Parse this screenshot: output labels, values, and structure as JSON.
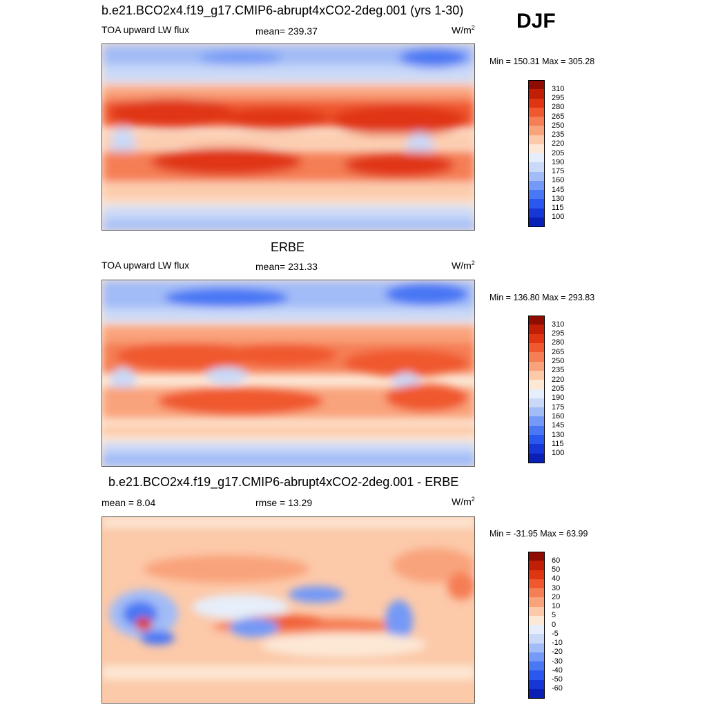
{
  "season": "DJF",
  "colors": {
    "abs_scale": [
      "#000080",
      "#0a1fb4",
      "#1637d6",
      "#2a57ee",
      "#4a77f4",
      "#7599f6",
      "#a2bcf7",
      "#cad9f8",
      "#e6eefb",
      "#fde8d6",
      "#fcc9a9",
      "#f9a37c",
      "#f57e55",
      "#f0582f",
      "#e03513",
      "#c01f05",
      "#8e0c00"
    ],
    "diff_scale": [
      "#000080",
      "#0a1fb4",
      "#1637d6",
      "#2a57ee",
      "#4a77f4",
      "#7599f6",
      "#a2bcf7",
      "#cad9f8",
      "#e6eefb",
      "#fde8d6",
      "#fcc9a9",
      "#f9a37c",
      "#f57e55",
      "#f0582f",
      "#e03513",
      "#c01f05",
      "#8e0c00"
    ]
  },
  "panels": [
    {
      "title": "b.e21.BCO2x4.f19_g17.CMIP6-abrupt4xCO2-2deg.001 (yrs 1-30)",
      "left_label": "TOA upward LW flux",
      "center_label": "mean= 239.37",
      "units": "W/m",
      "units_sup": "2",
      "minmax": "Min = 150.31 Max = 305.28",
      "colorbar_labels": [
        "310",
        "295",
        "280",
        "265",
        "250",
        "235",
        "220",
        "205",
        "190",
        "175",
        "160",
        "145",
        "130",
        "115",
        "100"
      ]
    },
    {
      "title": "ERBE",
      "left_label": "TOA upward LW flux",
      "center_label": "mean= 231.33",
      "units": "W/m",
      "units_sup": "2",
      "minmax": "Min = 136.80 Max = 293.83",
      "colorbar_labels": [
        "310",
        "295",
        "280",
        "265",
        "250",
        "235",
        "220",
        "205",
        "190",
        "175",
        "160",
        "145",
        "130",
        "115",
        "100"
      ]
    },
    {
      "title": "b.e21.BCO2x4.f19_g17.CMIP6-abrupt4xCO2-2deg.001 - ERBE",
      "left_label": "mean =   8.04",
      "center_label": "rmse =  13.29",
      "units": "W/m",
      "units_sup": "2",
      "minmax": "Min = -31.95 Max =  63.99",
      "colorbar_labels": [
        "60",
        "50",
        "40",
        "30",
        "20",
        "10",
        "5",
        "0",
        "-5",
        "-10",
        "-20",
        "-30",
        "-40",
        "-50",
        "-60"
      ]
    }
  ],
  "chart_data": [
    {
      "type": "heatmap",
      "title": "b.e21.BCO2x4.f19_g17.CMIP6-abrupt4xCO2-2deg.001 (yrs 1-30)",
      "variable": "TOA upward LW flux",
      "units": "W/m2",
      "mean": 239.37,
      "min": 150.31,
      "max": 305.28,
      "color_levels": [
        100,
        115,
        130,
        145,
        160,
        175,
        190,
        205,
        220,
        235,
        250,
        265,
        280,
        295,
        310
      ],
      "x_range": [
        0,
        360
      ],
      "y_range": [
        -90,
        90
      ]
    },
    {
      "type": "heatmap",
      "title": "ERBE",
      "variable": "TOA upward LW flux",
      "units": "W/m2",
      "mean": 231.33,
      "min": 136.8,
      "max": 293.83,
      "color_levels": [
        100,
        115,
        130,
        145,
        160,
        175,
        190,
        205,
        220,
        235,
        250,
        265,
        280,
        295,
        310
      ],
      "x_range": [
        0,
        360
      ],
      "y_range": [
        -90,
        90
      ]
    },
    {
      "type": "heatmap",
      "title": "b.e21.BCO2x4.f19_g17.CMIP6-abrupt4xCO2-2deg.001 - ERBE",
      "units": "W/m2",
      "mean": 8.04,
      "rmse": 13.29,
      "min": -31.95,
      "max": 63.99,
      "color_levels": [
        -60,
        -50,
        -40,
        -30,
        -20,
        -10,
        -5,
        0,
        5,
        10,
        20,
        30,
        40,
        50,
        60
      ],
      "x_range": [
        0,
        360
      ],
      "y_range": [
        -90,
        90
      ]
    }
  ]
}
